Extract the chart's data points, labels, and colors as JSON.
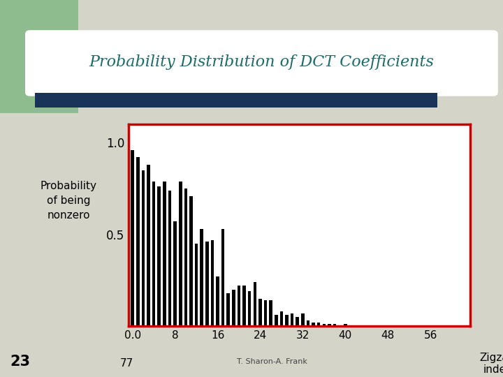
{
  "title": "Probability Distribution of DCT Coefficients",
  "title_color": "#1a6b6b",
  "header_bar_color": "#1a3358",
  "header_bg_color": "#8fbc8f",
  "ylabel_lines": [
    "Probability",
    "of being",
    "nonzero"
  ],
  "xlabel_line1": "Zigzag",
  "xlabel_line2": "index",
  "annotation": "T. Sharon-A. Frank",
  "label_23": "23",
  "label_77": "77",
  "ylim": [
    0.0,
    1.1
  ],
  "ytick_vals": [
    0.0,
    0.5,
    1.0
  ],
  "ytick_labels": [
    "",
    "0.5",
    "1.0"
  ],
  "xtick_vals": [
    0,
    8,
    16,
    24,
    32,
    40,
    48,
    56
  ],
  "xtick_labels": [
    "0.0",
    "8",
    "16",
    "24",
    "32",
    "40",
    "48",
    "56"
  ],
  "xlim": [
    -0.8,
    63.5
  ],
  "spine_color": "#cc0000",
  "bar_color": "#000000",
  "bar_width": 0.6,
  "values": [
    0.96,
    0.92,
    0.85,
    0.88,
    0.79,
    0.76,
    0.79,
    0.74,
    0.57,
    0.79,
    0.75,
    0.71,
    0.45,
    0.53,
    0.46,
    0.47,
    0.27,
    0.53,
    0.18,
    0.2,
    0.22,
    0.22,
    0.19,
    0.24,
    0.15,
    0.14,
    0.14,
    0.06,
    0.08,
    0.06,
    0.07,
    0.05,
    0.07,
    0.03,
    0.02,
    0.02,
    0.01,
    0.01,
    0.01,
    0.005,
    0.01,
    0.005,
    0.005,
    0.005,
    0.005,
    0.005,
    0.005,
    0.005,
    0.005,
    0.005,
    0.005,
    0.005,
    0.005,
    0.005,
    0.005,
    0.005,
    0.005,
    0.005,
    0.005,
    0.005,
    0.005,
    0.005,
    0.005,
    0.005
  ],
  "background_color": "#ffffff",
  "fig_bg_color": "#ffffff",
  "slide_bg_color": "#d4d4c8"
}
